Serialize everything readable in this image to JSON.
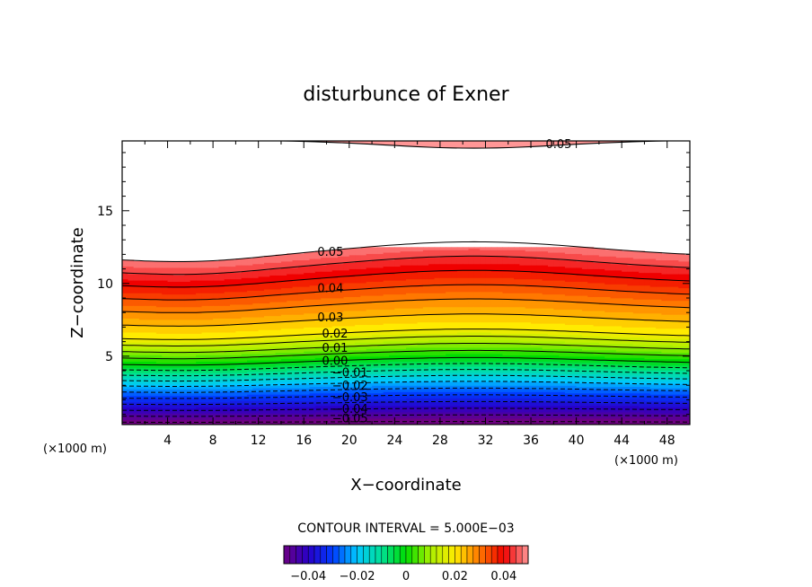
{
  "chart_data": {
    "type": "contour",
    "title": "disturbunce of Exner",
    "xlabel": "X−coordinate",
    "ylabel": "Z−coordinate",
    "x_unit": "(×1000 m)",
    "y_unit": "(×1000 m)",
    "xlim": [
      0,
      50
    ],
    "ylim": [
      0.3,
      19.8
    ],
    "x_ticks": [
      4,
      8,
      12,
      16,
      20,
      24,
      28,
      32,
      36,
      40,
      44,
      48
    ],
    "y_ticks": [
      5,
      10,
      15
    ],
    "contour_interval_label": "CONTOUR INTERVAL = 5.000E−03",
    "contour_interval": 0.005,
    "colorbar": {
      "range": [
        -0.05,
        0.05
      ],
      "tick_values": [
        -0.04,
        -0.02,
        0,
        0.02,
        0.04
      ],
      "tick_labels": [
        "−0.04",
        "−0.02",
        "0",
        "0.02",
        "0.04"
      ]
    },
    "contour_labels": [
      {
        "text": "0.05",
        "x": 37.3,
        "z": 19.3
      },
      {
        "text": "0.05",
        "x": 17.2,
        "z": 11.9
      },
      {
        "text": "0.04",
        "x": 17.2,
        "z": 9.4
      },
      {
        "text": "0.03",
        "x": 17.2,
        "z": 7.4
      },
      {
        "text": "0.02",
        "x": 17.6,
        "z": 6.3
      },
      {
        "text": "0.01",
        "x": 17.6,
        "z": 5.3
      },
      {
        "text": "0.00",
        "x": 17.6,
        "z": 4.4
      },
      {
        "text": "−0.01",
        "x": 18.5,
        "z": 3.6
      },
      {
        "text": "−0.02",
        "x": 18.5,
        "z": 2.7
      },
      {
        "text": "−0.03",
        "x": 18.5,
        "z": 1.9
      },
      {
        "text": "−0.04",
        "x": 18.5,
        "z": 1.1
      },
      {
        "text": "−0.05",
        "x": 18.5,
        "z": 0.45
      }
    ],
    "upper_region": {
      "max_at_x": 31,
      "top_value": 0.05,
      "z_of_0p05_contour": [
        [
          0,
          11.5
        ],
        [
          6,
          11.3
        ],
        [
          31,
          12.5
        ],
        [
          50,
          11.5
        ]
      ]
    }
  }
}
